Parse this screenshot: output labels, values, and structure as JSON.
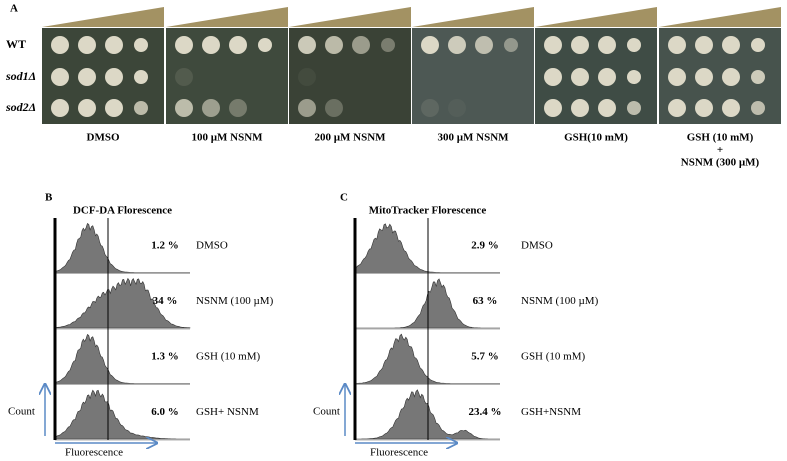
{
  "panel_a": {
    "label": "A",
    "row_labels": [
      "WT",
      "sod1Δ",
      "sod2Δ"
    ],
    "conditions": [
      [
        "DMSO"
      ],
      [
        "100 µM NSNM"
      ],
      [
        "200 µM  NSNM"
      ],
      [
        "300 µM NSNM"
      ],
      [
        "GSH(10 mM)"
      ],
      [
        "GSH (10 mM)",
        "+",
        "NSNM (300 µM)"
      ]
    ]
  },
  "panel_b": {
    "label": "B",
    "title": "DCF-DA Florescence",
    "percentages": [
      "1.2 %",
      "34 %",
      "1.3 %",
      "6.0 %"
    ],
    "treatments": [
      "DMSO",
      "NSNM (100 µM)",
      "GSH (10 mM)",
      "GSH+ NSNM"
    ],
    "y_label": "Count",
    "x_label": "Fluorescence"
  },
  "panel_c": {
    "label": "C",
    "title": "MitoTracker Florescence",
    "percentages": [
      "2.9 %",
      "63 %",
      "5.7 %",
      "23.4 %"
    ],
    "treatments": [
      "DMSO",
      "NSNM (100 µM)",
      "GSH (10 mM)",
      "GSH+NSNM"
    ],
    "y_label": "Count",
    "x_label": "Fluorescence"
  }
}
